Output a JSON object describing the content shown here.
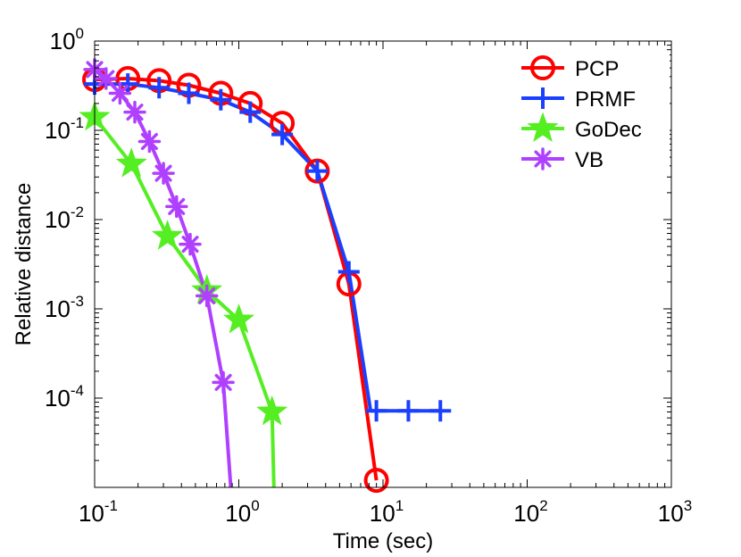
{
  "chart_data": {
    "type": "line",
    "xscale": "log",
    "yscale": "log",
    "xlim": [
      0.1,
      1000
    ],
    "ylim": [
      1e-05,
      1
    ],
    "xlabel": "Time (sec)",
    "ylabel": "Relative distance",
    "grid": false,
    "legend_position": "top-right",
    "x_ticks": [
      {
        "base": "10",
        "exp": "-1",
        "value": 0.1
      },
      {
        "base": "10",
        "exp": "0",
        "value": 1
      },
      {
        "base": "10",
        "exp": "1",
        "value": 10
      },
      {
        "base": "10",
        "exp": "2",
        "value": 100
      },
      {
        "base": "10",
        "exp": "3",
        "value": 1000
      }
    ],
    "y_ticks": [
      {
        "base": "10",
        "exp": "0",
        "value": 1
      },
      {
        "base": "10",
        "exp": "-1",
        "value": 0.1
      },
      {
        "base": "10",
        "exp": "-2",
        "value": 0.01
      },
      {
        "base": "10",
        "exp": "-3",
        "value": 0.001
      },
      {
        "base": "10",
        "exp": "-4",
        "value": 0.0001
      }
    ],
    "series": [
      {
        "name": "PCP",
        "color": "#ff0000",
        "marker": "circle",
        "x": [
          0.1,
          0.17,
          0.28,
          0.45,
          0.75,
          1.2,
          2.0,
          3.5,
          5.8,
          9.0
        ],
        "y": [
          0.37,
          0.38,
          0.36,
          0.32,
          0.26,
          0.2,
          0.12,
          0.035,
          0.0019,
          1.2e-05
        ],
        "tail_x": 9.0,
        "tail_y": 1.2e-05
      },
      {
        "name": "PRMF",
        "color": "#1a3fff",
        "marker": "plus",
        "x": [
          0.1,
          0.17,
          0.28,
          0.45,
          0.75,
          1.2,
          2.0,
          3.5,
          5.8,
          9.0,
          15,
          25
        ],
        "y": [
          0.33,
          0.33,
          0.3,
          0.26,
          0.22,
          0.16,
          0.09,
          0.035,
          0.0026,
          7.2e-05,
          7.2e-05,
          7.2e-05
        ],
        "tail_x": 8.2,
        "tail_y": 7.2e-05
      },
      {
        "name": "GoDec",
        "color": "#55ee22",
        "marker": "star",
        "x": [
          0.1,
          0.18,
          0.32,
          0.6,
          1.0,
          1.7
        ],
        "y": [
          0.14,
          0.042,
          0.0065,
          0.0016,
          0.00075,
          7e-05
        ],
        "tail_x": 1.75,
        "tail_y": 1e-05
      },
      {
        "name": "VB",
        "color": "#b040ff",
        "marker": "asterisk",
        "x": [
          0.1,
          0.12,
          0.15,
          0.19,
          0.24,
          0.3,
          0.37,
          0.46,
          0.6,
          0.78
        ],
        "y": [
          0.48,
          0.38,
          0.26,
          0.16,
          0.075,
          0.033,
          0.014,
          0.0053,
          0.0014,
          0.00015
        ],
        "tail_x": 0.88,
        "tail_y": 1e-05
      }
    ]
  }
}
